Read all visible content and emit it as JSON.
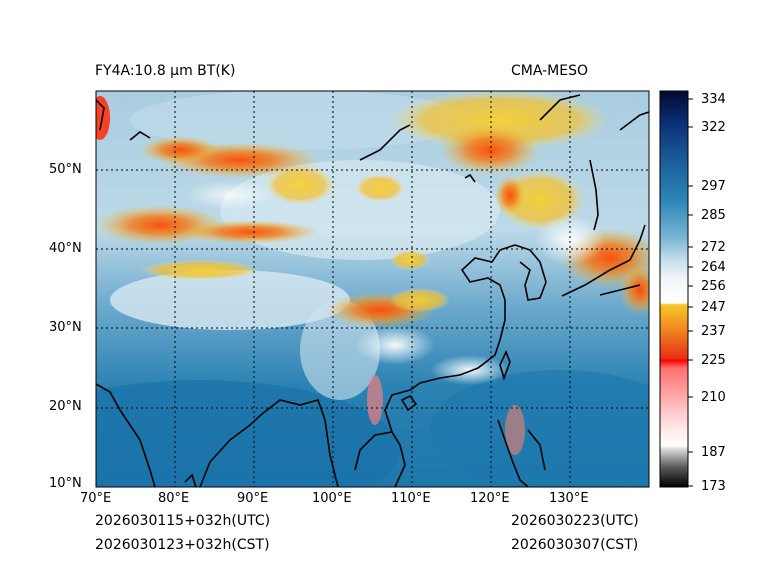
{
  "header": {
    "left_title": "FY4A:10.8 μm BT(K)",
    "right_title": "CMA-MESO"
  },
  "footer": {
    "init_utc": "2026030115+032h(UTC)",
    "init_cst": "2026030123+032h(CST)",
    "valid_utc": "2026030223(UTC)",
    "valid_cst": "2026030307(CST)"
  },
  "map": {
    "lon_range": [
      70,
      140
    ],
    "lat_range": [
      10,
      60
    ],
    "lon_ticks": [
      "70°E",
      "80°E",
      "90°E",
      "100°E",
      "110°E",
      "120°E",
      "130°E"
    ],
    "lat_ticks": [
      "10°N",
      "20°N",
      "30°N",
      "40°N",
      "50°N"
    ],
    "gridlines": "dotted"
  },
  "colorbar": {
    "vmin": 173,
    "vmax": 334,
    "ticks": [
      334,
      322,
      297,
      285,
      272,
      264,
      256,
      247,
      237,
      225,
      210,
      187,
      173
    ],
    "colors": {
      "cold": "#000000",
      "gray": "#9a9a9a",
      "red": "#ff0000",
      "orange": "#e86a1a",
      "yellow": "#f5d020",
      "white": "#f0f6fa",
      "light_blue": "#a8d0e4",
      "blue": "#2c86b4",
      "dark_blue": "#0a4a8a",
      "navy": "#03123a"
    }
  }
}
